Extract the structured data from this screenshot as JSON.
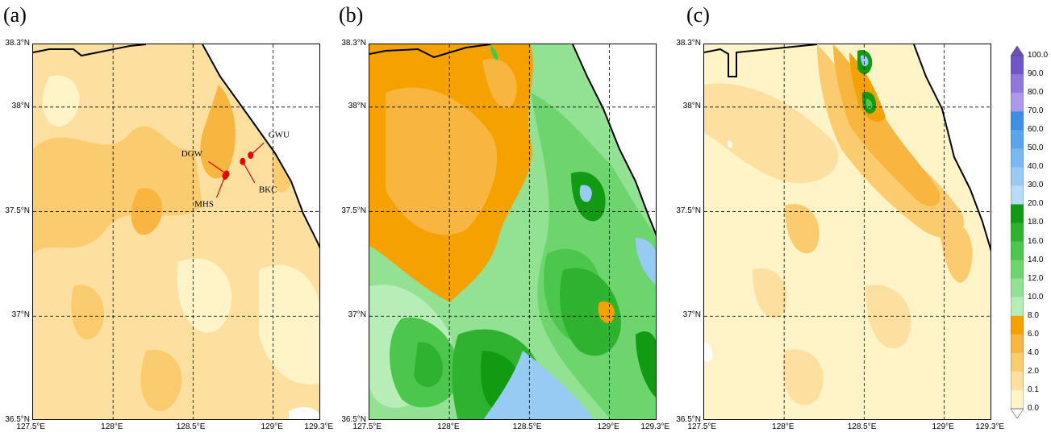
{
  "panels": [
    {
      "label": "(a)",
      "key": "a"
    },
    {
      "label": "(b)",
      "key": "b"
    },
    {
      "label": "(c)",
      "key": "c"
    }
  ],
  "axes": {
    "lat_ticks": [
      "38.3°N",
      "38°N",
      "37.5°N",
      "37°N",
      "36.5°N"
    ],
    "lat_values": [
      38.3,
      38.0,
      37.5,
      37.0,
      36.5
    ],
    "lon_ticks": [
      "127.5°E",
      "128°E",
      "128.5°E",
      "129°E",
      "129.3°E"
    ],
    "lon_values": [
      127.5,
      128.0,
      128.5,
      129.0,
      129.3
    ],
    "lat_range": [
      36.5,
      38.3
    ],
    "lon_range": [
      127.5,
      129.3
    ],
    "grid": "dashed"
  },
  "stations": [
    {
      "name": "GWU",
      "lat": 37.77,
      "lon": 128.86
    },
    {
      "name": "DGW",
      "lat": 37.68,
      "lon": 128.71
    },
    {
      "name": "BKC",
      "lat": 37.74,
      "lon": 128.81
    },
    {
      "name": "MHS",
      "lat": 37.67,
      "lon": 128.7
    }
  ],
  "colorbar": {
    "labels": [
      "100.0",
      "90.0",
      "80.0",
      "70.0",
      "60.0",
      "50.0",
      "40.0",
      "30.0",
      "20.0",
      "18.0",
      "16.0",
      "14.0",
      "12.0",
      "10.0",
      "8.0",
      "6.0",
      "4.0",
      "2.0",
      "0.1",
      "0.0"
    ],
    "colors": [
      "#7055c8",
      "#8f77de",
      "#ad98ea",
      "#3d8fe3",
      "#5aa4ea",
      "#79b8f0",
      "#98cbf4",
      "#b7dcf8",
      "#139a13",
      "#2fb22f",
      "#4cc64c",
      "#6ed56e",
      "#93e293",
      "#b7edb7",
      "#f5a200",
      "#f8b640",
      "#fbcb6f",
      "#fde0a0",
      "#fff3c8",
      "#ffffff"
    ],
    "extend_top_color": "#6b4fc4"
  },
  "colors": {
    "coast": "#000000",
    "station": "#e60000",
    "sea": "#ffffff"
  }
}
